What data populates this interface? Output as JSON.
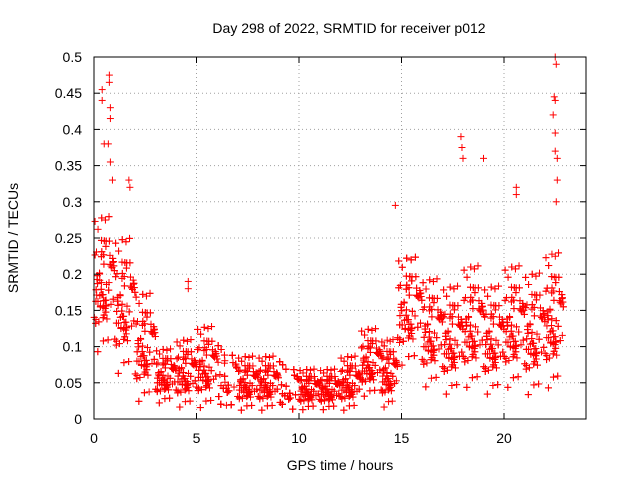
{
  "chart_data": {
    "type": "scatter",
    "title": "Day 298 of 2022, SRMTID for receiver p012",
    "xlabel": "GPS time / hours",
    "ylabel": "SRMTID / TECUs",
    "xlim": [
      0,
      24
    ],
    "ylim": [
      0,
      0.5
    ],
    "x_ticks": [
      0,
      5,
      10,
      15,
      20
    ],
    "y_ticks": [
      0,
      0.05,
      0.1,
      0.15,
      0.2,
      0.25,
      0.3,
      0.35,
      0.4,
      0.45,
      0.5
    ],
    "x_tick_labels": [
      "0",
      "5",
      "10",
      "15",
      "20"
    ],
    "y_tick_labels": [
      "0",
      "0.05",
      "0.1",
      "0.15",
      "0.2",
      "0.25",
      "0.3",
      "0.35",
      "0.4",
      "0.45",
      "0.5"
    ],
    "grid": true,
    "marker": "+",
    "marker_color": "#ff0000",
    "series": [
      {
        "name": "SRMTID",
        "profile": [
          {
            "x_start": 0.0,
            "x_end": 1.0,
            "center": 0.2,
            "spread": 0.05
          },
          {
            "x_start": 1.0,
            "x_end": 2.0,
            "center": 0.17,
            "spread": 0.05
          },
          {
            "x_start": 2.0,
            "x_end": 3.0,
            "center": 0.11,
            "spread": 0.04
          },
          {
            "x_start": 3.0,
            "x_end": 4.0,
            "center": 0.065,
            "spread": 0.02
          },
          {
            "x_start": 4.0,
            "x_end": 5.0,
            "center": 0.07,
            "spread": 0.025
          },
          {
            "x_start": 5.0,
            "x_end": 6.0,
            "center": 0.08,
            "spread": 0.03
          },
          {
            "x_start": 6.0,
            "x_end": 7.0,
            "center": 0.065,
            "spread": 0.025
          },
          {
            "x_start": 7.0,
            "x_end": 8.0,
            "center": 0.055,
            "spread": 0.02
          },
          {
            "x_start": 8.0,
            "x_end": 9.0,
            "center": 0.055,
            "spread": 0.02
          },
          {
            "x_start": 9.0,
            "x_end": 10.0,
            "center": 0.05,
            "spread": 0.02
          },
          {
            "x_start": 10.0,
            "x_end": 11.0,
            "center": 0.045,
            "spread": 0.015
          },
          {
            "x_start": 11.0,
            "x_end": 12.0,
            "center": 0.045,
            "spread": 0.015
          },
          {
            "x_start": 12.0,
            "x_end": 13.0,
            "center": 0.055,
            "spread": 0.02
          },
          {
            "x_start": 13.0,
            "x_end": 14.0,
            "center": 0.085,
            "spread": 0.025
          },
          {
            "x_start": 14.0,
            "x_end": 14.8,
            "center": 0.07,
            "spread": 0.025
          },
          {
            "x_start": 14.8,
            "x_end": 16.0,
            "center": 0.16,
            "spread": 0.04
          },
          {
            "x_start": 16.0,
            "x_end": 17.0,
            "center": 0.13,
            "spread": 0.04
          },
          {
            "x_start": 17.0,
            "x_end": 18.0,
            "center": 0.12,
            "spread": 0.04
          },
          {
            "x_start": 18.0,
            "x_end": 19.0,
            "center": 0.14,
            "spread": 0.045
          },
          {
            "x_start": 19.0,
            "x_end": 20.0,
            "center": 0.12,
            "spread": 0.04
          },
          {
            "x_start": 20.0,
            "x_end": 21.0,
            "center": 0.14,
            "spread": 0.045
          },
          {
            "x_start": 21.0,
            "x_end": 22.0,
            "center": 0.13,
            "spread": 0.045
          },
          {
            "x_start": 22.0,
            "x_end": 22.9,
            "center": 0.15,
            "spread": 0.05
          }
        ],
        "notable_points": [
          {
            "x": 0.4,
            "y": 0.455
          },
          {
            "x": 0.4,
            "y": 0.44
          },
          {
            "x": 0.75,
            "y": 0.475
          },
          {
            "x": 0.75,
            "y": 0.465
          },
          {
            "x": 0.8,
            "y": 0.43
          },
          {
            "x": 0.8,
            "y": 0.415
          },
          {
            "x": 0.5,
            "y": 0.38
          },
          {
            "x": 0.7,
            "y": 0.38
          },
          {
            "x": 0.8,
            "y": 0.355
          },
          {
            "x": 0.9,
            "y": 0.33
          },
          {
            "x": 1.7,
            "y": 0.33
          },
          {
            "x": 1.75,
            "y": 0.32
          },
          {
            "x": 4.6,
            "y": 0.19
          },
          {
            "x": 4.6,
            "y": 0.18
          },
          {
            "x": 14.7,
            "y": 0.295
          },
          {
            "x": 17.9,
            "y": 0.39
          },
          {
            "x": 17.95,
            "y": 0.375
          },
          {
            "x": 18.0,
            "y": 0.36
          },
          {
            "x": 19.0,
            "y": 0.36
          },
          {
            "x": 20.6,
            "y": 0.32
          },
          {
            "x": 20.6,
            "y": 0.31
          },
          {
            "x": 22.5,
            "y": 0.5
          },
          {
            "x": 22.55,
            "y": 0.49
          },
          {
            "x": 22.45,
            "y": 0.445
          },
          {
            "x": 22.5,
            "y": 0.44
          },
          {
            "x": 22.4,
            "y": 0.42
          },
          {
            "x": 22.5,
            "y": 0.395
          },
          {
            "x": 22.5,
            "y": 0.37
          },
          {
            "x": 22.6,
            "y": 0.36
          },
          {
            "x": 22.6,
            "y": 0.33
          },
          {
            "x": 22.55,
            "y": 0.3
          }
        ]
      }
    ]
  }
}
